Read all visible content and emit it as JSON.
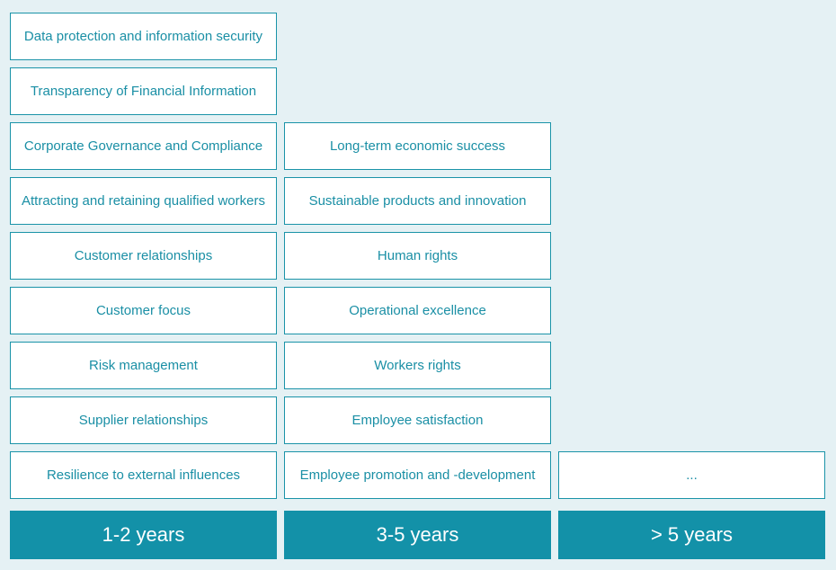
{
  "columns": [
    {
      "label": "1-2 years",
      "items": [
        "Data protection and information security",
        "Transparency of Financial Information",
        "Corporate Governance and Compliance",
        "Attracting and retaining qualified workers",
        "Customer relationships",
        "Customer focus",
        "Risk management",
        "Supplier relationships",
        "Resilience to external influences"
      ]
    },
    {
      "label": "3-5 years",
      "items": [
        "Long-term economic success",
        "Sustainable products and innovation",
        "Human rights",
        "Operational excellence",
        "Workers rights",
        "Employee satisfaction",
        "Employee promotion and -development"
      ]
    },
    {
      "label": "> 5 years",
      "items": [
        "..."
      ]
    }
  ],
  "colors": {
    "background": "#e5f1f4",
    "accent": "#1391a8",
    "text": "#1a8fa5",
    "cell_fill": "#ffffff"
  }
}
